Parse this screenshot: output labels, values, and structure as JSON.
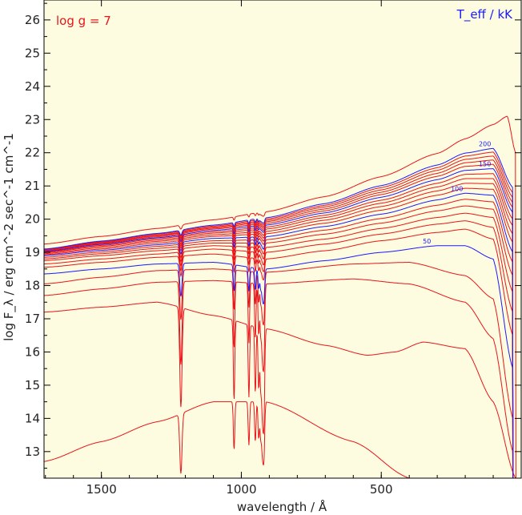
{
  "chart_data": {
    "type": "line",
    "xaxis": {
      "label": "wavelength / Å",
      "min": 0,
      "max": 1705,
      "reversed": true,
      "ticks": [
        1500,
        1000,
        500
      ]
    },
    "yaxis": {
      "label": "log F_λ / erg cm^-2 sec^-1 cm^-1",
      "min": 12.2,
      "max": 26.6,
      "ticks": [
        13,
        14,
        15,
        16,
        17,
        18,
        19,
        20,
        21,
        22,
        23,
        24,
        25,
        26
      ]
    },
    "annotations": {
      "logg": "log g = 7",
      "teff": "T_eff / kK"
    },
    "labeled_series": [
      "50",
      "100",
      "150",
      "200"
    ],
    "lines": {
      "lyman": [
        1216,
        1026,
        973,
        950,
        938,
        931,
        926,
        923,
        920,
        918
      ],
      "edge": 912
    },
    "series": [
      {
        "color": "#e8141a",
        "anchors": [
          [
            1705,
            12.7
          ],
          [
            1500,
            13.3
          ],
          [
            1300,
            13.9
          ],
          [
            1100,
            14.5
          ],
          [
            912,
            14.5
          ],
          [
            600,
            13.3
          ],
          [
            400,
            12.2
          ]
        ],
        "dip": 1.8,
        "peak": 0,
        "final": 12.2
      },
      {
        "color": "#e8141a",
        "anchors": [
          [
            1705,
            17.2
          ],
          [
            1500,
            17.35
          ],
          [
            1300,
            17.5
          ],
          [
            1100,
            17.1
          ],
          [
            912,
            16.7
          ],
          [
            700,
            16.2
          ],
          [
            550,
            15.9
          ],
          [
            450,
            16.0
          ],
          [
            350,
            16.3
          ],
          [
            200,
            16.1
          ],
          [
            100,
            14.5
          ],
          [
            20,
            12.2
          ]
        ],
        "dip": 3.0,
        "peak": 0,
        "final": 12.2
      },
      {
        "color": "#e8141a",
        "anchors": [
          [
            1705,
            17.7
          ],
          [
            1500,
            17.9
          ],
          [
            1300,
            18.1
          ],
          [
            1100,
            18.15
          ],
          [
            912,
            18.05
          ],
          [
            600,
            18.2
          ],
          [
            400,
            18.05
          ],
          [
            200,
            17.5
          ],
          [
            100,
            16.4
          ],
          [
            30,
            13.0
          ]
        ],
        "dip": 2.5,
        "peak": 0,
        "final": 12.2
      },
      {
        "color": "#e8141a",
        "anchors": [
          [
            1705,
            18.05
          ],
          [
            1500,
            18.25
          ],
          [
            1300,
            18.45
          ],
          [
            1100,
            18.5
          ],
          [
            912,
            18.4
          ],
          [
            600,
            18.65
          ],
          [
            400,
            18.7
          ],
          [
            200,
            18.3
          ],
          [
            100,
            17.6
          ],
          [
            30,
            14.0
          ]
        ],
        "dip": 1.5,
        "peak": 0,
        "final": 12.2
      },
      {
        "color": "#1a1aff",
        "anchors": [
          [
            1705,
            18.35
          ],
          [
            1500,
            18.5
          ],
          [
            1300,
            18.65
          ],
          [
            1100,
            18.7
          ],
          [
            912,
            18.5
          ],
          [
            700,
            18.75
          ],
          [
            500,
            19.0
          ],
          [
            300,
            19.2
          ],
          [
            200,
            19.2
          ],
          [
            100,
            18.8
          ],
          [
            30,
            15.5
          ]
        ],
        "dip": 1.0,
        "peak": 0,
        "final": 12.2
      },
      {
        "color": "#e8141a",
        "anchors": [
          [
            1705,
            18.55
          ],
          [
            1500,
            18.7
          ],
          [
            1300,
            18.85
          ],
          [
            1100,
            18.95
          ],
          [
            912,
            18.8
          ],
          [
            700,
            19.05
          ],
          [
            500,
            19.35
          ],
          [
            300,
            19.6
          ],
          [
            200,
            19.7
          ],
          [
            100,
            19.4
          ],
          [
            30,
            16.5
          ]
        ],
        "dip": 0.6,
        "peak": 0,
        "final": 12.2
      },
      {
        "color": "#e8141a",
        "anchors": [
          [
            1705,
            18.65
          ],
          [
            1500,
            18.8
          ],
          [
            1300,
            18.95
          ],
          [
            1100,
            19.1
          ],
          [
            912,
            19.0
          ],
          [
            700,
            19.25
          ],
          [
            500,
            19.55
          ],
          [
            300,
            19.85
          ],
          [
            200,
            19.95
          ],
          [
            100,
            19.75
          ],
          [
            30,
            17.2
          ]
        ],
        "dip": 0.55,
        "peak": 0,
        "final": 12.2
      },
      {
        "color": "#e8141a",
        "anchors": [
          [
            1705,
            18.75
          ],
          [
            1500,
            18.9
          ],
          [
            1300,
            19.05
          ],
          [
            1100,
            19.2
          ],
          [
            912,
            19.15
          ],
          [
            700,
            19.4
          ],
          [
            500,
            19.72
          ],
          [
            300,
            20.05
          ],
          [
            200,
            20.18
          ],
          [
            100,
            20.05
          ],
          [
            30,
            17.8
          ]
        ],
        "dip": 0.5,
        "peak": 0,
        "final": 12.2
      },
      {
        "color": "#e8141a",
        "anchors": [
          [
            1705,
            18.8
          ],
          [
            1500,
            18.96
          ],
          [
            1300,
            19.12
          ],
          [
            1100,
            19.28
          ],
          [
            912,
            19.28
          ],
          [
            700,
            19.55
          ],
          [
            500,
            19.88
          ],
          [
            300,
            20.25
          ],
          [
            200,
            20.4
          ],
          [
            100,
            20.3
          ],
          [
            30,
            18.3
          ]
        ],
        "dip": 0.45,
        "peak": 0,
        "final": 12.2
      },
      {
        "color": "#e8141a",
        "anchors": [
          [
            1705,
            18.85
          ],
          [
            1500,
            19.01
          ],
          [
            1300,
            19.18
          ],
          [
            1100,
            19.35
          ],
          [
            912,
            19.38
          ],
          [
            700,
            19.67
          ],
          [
            500,
            20.02
          ],
          [
            300,
            20.42
          ],
          [
            200,
            20.6
          ],
          [
            100,
            20.52
          ],
          [
            30,
            18.7
          ]
        ],
        "dip": 0.4,
        "peak": 0,
        "final": 12.2
      },
      {
        "color": "#1a1aff",
        "anchors": [
          [
            1705,
            18.9
          ],
          [
            1500,
            19.06
          ],
          [
            1300,
            19.23
          ],
          [
            1100,
            19.42
          ],
          [
            912,
            19.47
          ],
          [
            700,
            19.78
          ],
          [
            500,
            20.15
          ],
          [
            300,
            20.58
          ],
          [
            200,
            20.78
          ],
          [
            100,
            20.72
          ],
          [
            30,
            19.0
          ]
        ],
        "dip": 0.35,
        "peak": 0,
        "final": 12.2
      },
      {
        "color": "#e8141a",
        "anchors": [
          [
            1705,
            18.93
          ],
          [
            1500,
            19.1
          ],
          [
            1300,
            19.28
          ],
          [
            1100,
            19.48
          ],
          [
            912,
            19.56
          ],
          [
            700,
            19.88
          ],
          [
            500,
            20.27
          ],
          [
            300,
            20.72
          ],
          [
            200,
            20.93
          ],
          [
            100,
            20.9
          ],
          [
            30,
            19.3
          ]
        ],
        "dip": 0.3,
        "peak": 0,
        "final": 12.2
      },
      {
        "color": "#e8141a",
        "anchors": [
          [
            1705,
            18.96
          ],
          [
            1500,
            19.14
          ],
          [
            1300,
            19.33
          ],
          [
            1100,
            19.53
          ],
          [
            912,
            19.63
          ],
          [
            700,
            19.97
          ],
          [
            500,
            20.38
          ],
          [
            300,
            20.85
          ],
          [
            200,
            21.08
          ],
          [
            100,
            21.07
          ],
          [
            30,
            19.55
          ]
        ],
        "dip": 0.27,
        "peak": 0,
        "final": 12.2
      },
      {
        "color": "#e8141a",
        "anchors": [
          [
            1705,
            18.99
          ],
          [
            1500,
            19.18
          ],
          [
            1300,
            19.37
          ],
          [
            1100,
            19.58
          ],
          [
            912,
            19.7
          ],
          [
            700,
            20.05
          ],
          [
            500,
            20.48
          ],
          [
            300,
            20.97
          ],
          [
            200,
            21.22
          ],
          [
            100,
            21.22
          ],
          [
            30,
            19.8
          ]
        ],
        "dip": 0.25,
        "peak": 0,
        "final": 12.2
      },
      {
        "color": "#e8141a",
        "anchors": [
          [
            1705,
            19.01
          ],
          [
            1500,
            19.21
          ],
          [
            1300,
            19.41
          ],
          [
            1100,
            19.62
          ],
          [
            912,
            19.76
          ],
          [
            700,
            20.12
          ],
          [
            500,
            20.57
          ],
          [
            300,
            21.08
          ],
          [
            200,
            21.35
          ],
          [
            100,
            21.37
          ],
          [
            30,
            20.0
          ]
        ],
        "dip": 0.23,
        "peak": 0,
        "final": 12.2
      },
      {
        "color": "#1a1aff",
        "anchors": [
          [
            1705,
            19.03
          ],
          [
            1500,
            19.24
          ],
          [
            1300,
            19.44
          ],
          [
            1100,
            19.66
          ],
          [
            912,
            19.82
          ],
          [
            700,
            20.19
          ],
          [
            500,
            20.66
          ],
          [
            300,
            21.19
          ],
          [
            200,
            21.47
          ],
          [
            100,
            21.52
          ],
          [
            30,
            20.2
          ]
        ],
        "dip": 0.2,
        "peak": 0,
        "final": 12.2
      },
      {
        "color": "#e8141a",
        "anchors": [
          [
            1705,
            19.05
          ],
          [
            1500,
            19.26
          ],
          [
            1300,
            19.47
          ],
          [
            1100,
            19.7
          ],
          [
            912,
            19.87
          ],
          [
            700,
            20.25
          ],
          [
            500,
            20.74
          ],
          [
            300,
            21.29
          ],
          [
            200,
            21.59
          ],
          [
            100,
            21.65
          ],
          [
            30,
            20.35
          ]
        ],
        "dip": 0.19,
        "peak": 0,
        "final": 12.2
      },
      {
        "color": "#e8141a",
        "anchors": [
          [
            1705,
            19.06
          ],
          [
            1500,
            19.28
          ],
          [
            1300,
            19.5
          ],
          [
            1100,
            19.73
          ],
          [
            912,
            19.92
          ],
          [
            700,
            20.31
          ],
          [
            500,
            20.81
          ],
          [
            300,
            21.38
          ],
          [
            200,
            21.7
          ],
          [
            100,
            21.78
          ],
          [
            30,
            20.5
          ]
        ],
        "dip": 0.18,
        "peak": 0,
        "final": 12.2
      },
      {
        "color": "#e8141a",
        "anchors": [
          [
            1705,
            19.08
          ],
          [
            1500,
            19.3
          ],
          [
            1300,
            19.52
          ],
          [
            1100,
            19.76
          ],
          [
            912,
            19.96
          ],
          [
            700,
            20.37
          ],
          [
            500,
            20.88
          ],
          [
            300,
            21.47
          ],
          [
            200,
            21.8
          ],
          [
            100,
            21.9
          ],
          [
            30,
            20.65
          ]
        ],
        "dip": 0.17,
        "peak": 0,
        "final": 12.2
      },
      {
        "color": "#e8141a",
        "anchors": [
          [
            1705,
            19.09
          ],
          [
            1500,
            19.32
          ],
          [
            1300,
            19.55
          ],
          [
            1100,
            19.79
          ],
          [
            912,
            20.0
          ],
          [
            700,
            20.42
          ],
          [
            500,
            20.95
          ],
          [
            300,
            21.55
          ],
          [
            200,
            21.9
          ],
          [
            100,
            22.02
          ],
          [
            30,
            20.8
          ]
        ],
        "dip": 0.16,
        "peak": 0,
        "final": 12.2
      },
      {
        "color": "#1a1aff",
        "anchors": [
          [
            1705,
            19.1
          ],
          [
            1500,
            19.34
          ],
          [
            1300,
            19.57
          ],
          [
            1100,
            19.82
          ],
          [
            912,
            20.04
          ],
          [
            700,
            20.47
          ],
          [
            500,
            21.01
          ],
          [
            300,
            21.63
          ],
          [
            200,
            21.99
          ],
          [
            100,
            22.13
          ],
          [
            30,
            20.95
          ]
        ],
        "dip": 0.15,
        "peak": 0,
        "final": 12.2
      },
      {
        "color": "#e8141a",
        "anchors": [
          [
            1705,
            19.25
          ],
          [
            1500,
            19.48
          ],
          [
            1300,
            19.72
          ],
          [
            1100,
            19.98
          ],
          [
            912,
            20.22
          ],
          [
            700,
            20.68
          ],
          [
            500,
            21.28
          ],
          [
            300,
            21.98
          ],
          [
            200,
            22.42
          ],
          [
            100,
            22.85
          ],
          [
            50,
            23.1
          ],
          [
            20,
            22.0
          ]
        ],
        "dip": 0.12,
        "peak": 0,
        "final": 12.2
      }
    ]
  }
}
